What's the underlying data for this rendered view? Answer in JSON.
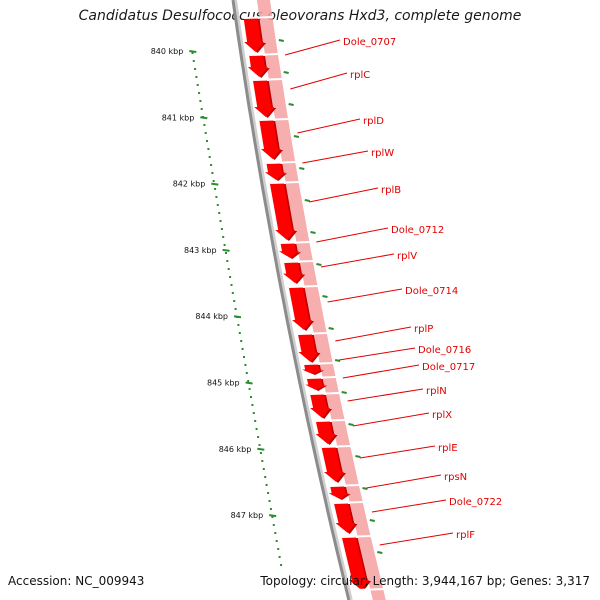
{
  "title": "Candidatus Desulfococcus oleovorans Hxd3, complete genome",
  "accession": "Accession: NC_009943",
  "summary": "Topology: circular; Length: 3,944,167 bp; Genes: 3,317",
  "colors": {
    "gene_fill": "#ff0000",
    "gene_shadow": "#c40000",
    "gene_band": "#f4a0a0",
    "backbone": "#8c8c8c",
    "ruler": "#2e8b2e",
    "label": "#e00000"
  },
  "ruler_labels": [
    "840 kbp",
    "841 kbp",
    "842 kbp",
    "843 kbp",
    "844 kbp",
    "845 kbp",
    "846 kbp",
    "847 kbp"
  ],
  "genes": [
    "Dole_0707",
    "rplC",
    "rplD",
    "rplW",
    "rplB",
    "Dole_0712",
    "rplV",
    "Dole_0714",
    "rplP",
    "Dole_0716",
    "Dole_0717",
    "rplN",
    "rplX",
    "rplE",
    "rpsN",
    "Dole_0722",
    "rplF"
  ]
}
